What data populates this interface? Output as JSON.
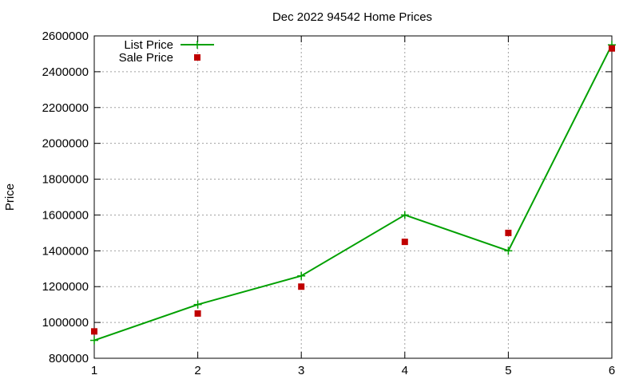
{
  "chart_data": {
    "type": "line",
    "title": "Dec 2022 94542 Home Prices",
    "xlabel": "",
    "ylabel": "Price",
    "x": [
      1,
      2,
      3,
      4,
      5,
      6
    ],
    "xlim": [
      1,
      6
    ],
    "ylim": [
      800000,
      2600000
    ],
    "xticks": [
      "1",
      "2",
      "3",
      "4",
      "5",
      "6"
    ],
    "yticks": [
      "800000",
      "1000000",
      "1200000",
      "1400000",
      "1600000",
      "1800000",
      "2000000",
      "2200000",
      "2400000",
      "2600000"
    ],
    "grid": true,
    "legend_position": "top-left",
    "series": [
      {
        "name": "List Price",
        "style": "line-with-plus-markers",
        "color": "#00a000",
        "values": [
          900000,
          1100000,
          1260000,
          1600000,
          1400000,
          2550000
        ]
      },
      {
        "name": "Sale Price",
        "style": "square-markers",
        "color": "#c00000",
        "values": [
          950000,
          1050000,
          1200000,
          1450000,
          1500000,
          2530000
        ]
      }
    ]
  }
}
